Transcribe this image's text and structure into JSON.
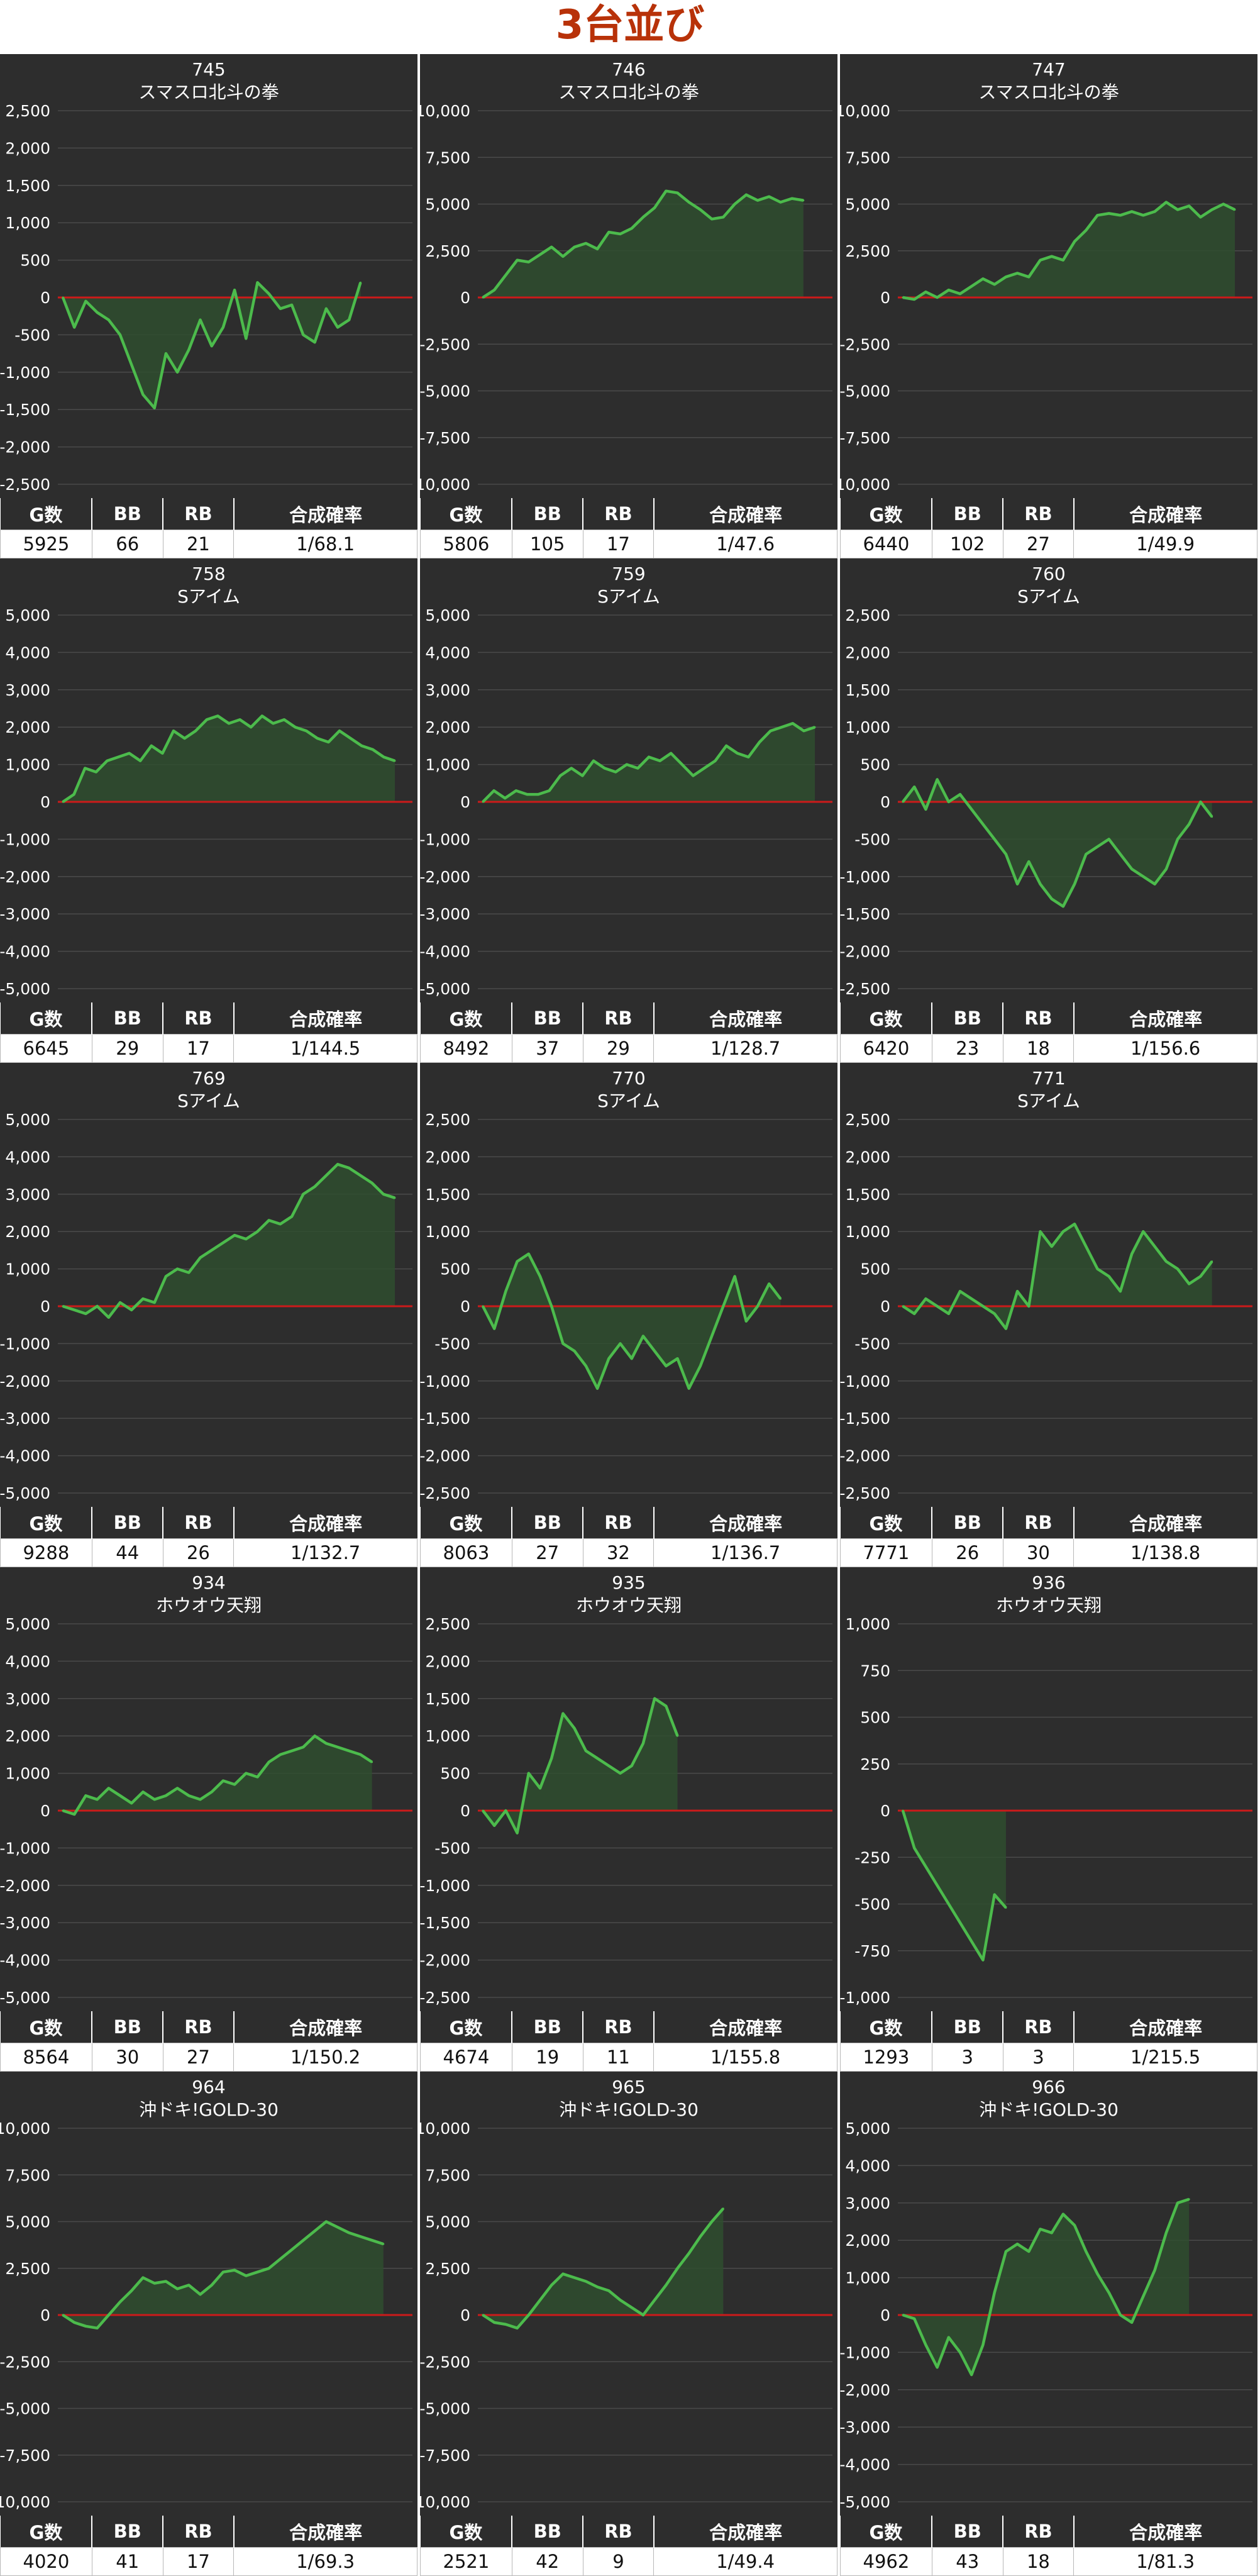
{
  "page": {
    "title": "3台並び"
  },
  "stats_headers": {
    "games": "G数",
    "bb": "BB",
    "rb": "RB",
    "rate": "合成確率"
  },
  "colors": {
    "panel_bg": "#2d2d2d",
    "line": "#4cbb4c",
    "fill": "#2f4d2f",
    "zero_line": "#cc1a1a",
    "grid": "#4a4a4a",
    "title_text": "#b83209"
  },
  "chart_data": [
    {
      "type": "area",
      "machine": "745",
      "name": "スマスロ北斗の拳",
      "ylim": [
        -2500,
        2500
      ],
      "yticks": [
        "2,500",
        "2,000",
        "1,500",
        "1,000",
        "500",
        "0",
        "-500",
        "-1,000",
        "-1,500",
        "-2,000",
        "-2,500"
      ],
      "values": [
        0,
        -400,
        -50,
        -200,
        -300,
        -500,
        -900,
        -1300,
        -1480,
        -750,
        -1000,
        -700,
        -300,
        -650,
        -400,
        100,
        -550,
        200,
        50,
        -150,
        -100,
        -500,
        -600,
        -150,
        -400,
        -300,
        200
      ],
      "stats": {
        "games": "5925",
        "bb": "66",
        "rb": "21",
        "rate": "1/68.1"
      }
    },
    {
      "type": "area",
      "machine": "746",
      "name": "スマスロ北斗の拳",
      "ylim": [
        -10000,
        10000
      ],
      "yticks": [
        "10,000",
        "7,500",
        "5,000",
        "2,500",
        "0",
        "-2,500",
        "-5,000",
        "-7,500",
        "-10,000"
      ],
      "values": [
        0,
        400,
        1200,
        2000,
        1900,
        2300,
        2700,
        2200,
        2700,
        2900,
        2600,
        3500,
        3400,
        3700,
        4300,
        4800,
        5700,
        5600,
        5100,
        4700,
        4200,
        4300,
        5000,
        5500,
        5200,
        5400,
        5100,
        5300,
        5200
      ],
      "stats": {
        "games": "5806",
        "bb": "105",
        "rb": "17",
        "rate": "1/47.6"
      }
    },
    {
      "type": "area",
      "machine": "747",
      "name": "スマスロ北斗の拳",
      "ylim": [
        -10000,
        10000
      ],
      "yticks": [
        "10,000",
        "7,500",
        "5,000",
        "2,500",
        "0",
        "-2,500",
        "-5,000",
        "-7,500",
        "-10,000"
      ],
      "values": [
        0,
        -100,
        300,
        0,
        400,
        200,
        600,
        1000,
        700,
        1100,
        1300,
        1100,
        2000,
        2200,
        2000,
        3000,
        3600,
        4400,
        4500,
        4400,
        4600,
        4400,
        4600,
        5100,
        4700,
        4900,
        4300,
        4700,
        5000,
        4700
      ],
      "stats": {
        "games": "6440",
        "bb": "102",
        "rb": "27",
        "rate": "1/49.9"
      }
    },
    {
      "type": "area",
      "machine": "758",
      "name": "Sアイム",
      "ylim": [
        -5000,
        5000
      ],
      "yticks": [
        "5,000",
        "4,000",
        "3,000",
        "2,000",
        "1,000",
        "0",
        "-1,000",
        "-2,000",
        "-3,000",
        "-4,000",
        "-5,000"
      ],
      "values": [
        0,
        200,
        900,
        800,
        1100,
        1200,
        1300,
        1100,
        1500,
        1300,
        1900,
        1700,
        1900,
        2200,
        2300,
        2100,
        2200,
        2000,
        2300,
        2100,
        2200,
        2000,
        1900,
        1700,
        1600,
        1900,
        1700,
        1500,
        1400,
        1200,
        1100
      ],
      "stats": {
        "games": "6645",
        "bb": "29",
        "rb": "17",
        "rate": "1/144.5"
      }
    },
    {
      "type": "area",
      "machine": "759",
      "name": "Sアイム",
      "ylim": [
        -5000,
        5000
      ],
      "yticks": [
        "5,000",
        "4,000",
        "3,000",
        "2,000",
        "1,000",
        "0",
        "-1,000",
        "-2,000",
        "-3,000",
        "-4,000",
        "-5,000"
      ],
      "values": [
        0,
        300,
        100,
        300,
        200,
        200,
        300,
        700,
        900,
        700,
        1100,
        900,
        800,
        1000,
        900,
        1200,
        1100,
        1300,
        1000,
        700,
        900,
        1100,
        1500,
        1300,
        1200,
        1600,
        1900,
        2000,
        2100,
        1900,
        2000
      ],
      "stats": {
        "games": "8492",
        "bb": "37",
        "rb": "29",
        "rate": "1/128.7"
      }
    },
    {
      "type": "area",
      "machine": "760",
      "name": "Sアイム",
      "ylim": [
        -2500,
        2500
      ],
      "yticks": [
        "2,500",
        "2,000",
        "1,500",
        "1,000",
        "500",
        "0",
        "-500",
        "-1,000",
        "-1,500",
        "-2,000",
        "-2,500"
      ],
      "values": [
        0,
        200,
        -100,
        300,
        0,
        100,
        -100,
        -300,
        -500,
        -700,
        -1100,
        -800,
        -1100,
        -1300,
        -1400,
        -1100,
        -700,
        -600,
        -500,
        -700,
        -900,
        -1000,
        -1100,
        -900,
        -500,
        -300,
        0,
        -200
      ],
      "stats": {
        "games": "6420",
        "bb": "23",
        "rb": "18",
        "rate": "1/156.6"
      }
    },
    {
      "type": "area",
      "machine": "769",
      "name": "Sアイム",
      "ylim": [
        -5000,
        5000
      ],
      "yticks": [
        "5,000",
        "4,000",
        "3,000",
        "2,000",
        "1,000",
        "0",
        "-1,000",
        "-2,000",
        "-3,000",
        "-4,000",
        "-5,000"
      ],
      "values": [
        0,
        -100,
        -200,
        0,
        -300,
        100,
        -100,
        200,
        100,
        800,
        1000,
        900,
        1300,
        1500,
        1700,
        1900,
        1800,
        2000,
        2300,
        2200,
        2400,
        3000,
        3200,
        3500,
        3800,
        3700,
        3500,
        3300,
        3000,
        2900
      ],
      "stats": {
        "games": "9288",
        "bb": "44",
        "rb": "26",
        "rate": "1/132.7"
      }
    },
    {
      "type": "area",
      "machine": "770",
      "name": "Sアイム",
      "ylim": [
        -2500,
        2500
      ],
      "yticks": [
        "2,500",
        "2,000",
        "1,500",
        "1,000",
        "500",
        "0",
        "-500",
        "-1,000",
        "-1,500",
        "-2,000",
        "-2,500"
      ],
      "values": [
        0,
        -300,
        200,
        600,
        700,
        400,
        0,
        -500,
        -600,
        -800,
        -1100,
        -700,
        -500,
        -700,
        -400,
        -600,
        -800,
        -700,
        -1100,
        -800,
        -400,
        0,
        400,
        -200,
        0,
        300,
        100
      ],
      "stats": {
        "games": "8063",
        "bb": "27",
        "rb": "32",
        "rate": "1/136.7"
      }
    },
    {
      "type": "area",
      "machine": "771",
      "name": "Sアイム",
      "ylim": [
        -2500,
        2500
      ],
      "yticks": [
        "2,500",
        "2,000",
        "1,500",
        "1,000",
        "500",
        "0",
        "-500",
        "-1,000",
        "-1,500",
        "-2,000",
        "-2,500"
      ],
      "values": [
        0,
        -100,
        100,
        0,
        -100,
        200,
        100,
        0,
        -100,
        -300,
        200,
        0,
        1000,
        800,
        1000,
        1100,
        800,
        500,
        400,
        200,
        700,
        1000,
        800,
        600,
        500,
        300,
        400,
        600
      ],
      "stats": {
        "games": "7771",
        "bb": "26",
        "rb": "30",
        "rate": "1/138.8"
      }
    },
    {
      "type": "area",
      "machine": "934",
      "name": "ホウオウ天翔",
      "ylim": [
        -5000,
        5000
      ],
      "yticks": [
        "5,000",
        "4,000",
        "3,000",
        "2,000",
        "1,000",
        "0",
        "-1,000",
        "-2,000",
        "-3,000",
        "-4,000",
        "-5,000"
      ],
      "values": [
        0,
        -100,
        400,
        300,
        600,
        400,
        200,
        500,
        300,
        400,
        600,
        400,
        300,
        500,
        800,
        700,
        1000,
        900,
        1300,
        1500,
        1600,
        1700,
        2000,
        1800,
        1700,
        1600,
        1500,
        1300
      ],
      "stats": {
        "games": "8564",
        "bb": "30",
        "rb": "27",
        "rate": "1/150.2"
      }
    },
    {
      "type": "area",
      "machine": "935",
      "name": "ホウオウ天翔",
      "ylim": [
        -2500,
        2500
      ],
      "yticks": [
        "2,500",
        "2,000",
        "1,500",
        "1,000",
        "500",
        "0",
        "-500",
        "-1,000",
        "-1,500",
        "-2,000",
        "-2,500"
      ],
      "values": [
        0,
        -200,
        0,
        -300,
        500,
        300,
        700,
        1300,
        1100,
        800,
        700,
        600,
        500,
        600,
        900,
        1500,
        1400,
        1000
      ],
      "stats": {
        "games": "4674",
        "bb": "19",
        "rb": "11",
        "rate": "1/155.8"
      }
    },
    {
      "type": "area",
      "machine": "936",
      "name": "ホウオウ天翔",
      "ylim": [
        -1000,
        1000
      ],
      "yticks": [
        "1,000",
        "750",
        "500",
        "250",
        "0",
        "-250",
        "-500",
        "-750",
        "-1,000"
      ],
      "values": [
        0,
        -200,
        -300,
        -400,
        -500,
        -600,
        -700,
        -800,
        -450,
        -520
      ],
      "stats": {
        "games": "1293",
        "bb": "3",
        "rb": "3",
        "rate": "1/215.5"
      }
    },
    {
      "type": "area",
      "machine": "964",
      "name": "沖ドキ!GOLD-30",
      "ylim": [
        -10000,
        10000
      ],
      "yticks": [
        "10,000",
        "7,500",
        "5,000",
        "2,500",
        "0",
        "-2,500",
        "-5,000",
        "-7,500",
        "-10,000"
      ],
      "values": [
        0,
        -400,
        -600,
        -700,
        0,
        700,
        1300,
        2000,
        1700,
        1800,
        1400,
        1600,
        1100,
        1600,
        2300,
        2400,
        2100,
        2300,
        2500,
        3000,
        3500,
        4000,
        4500,
        5000,
        4700,
        4400,
        4200,
        4000,
        3800
      ],
      "stats": {
        "games": "4020",
        "bb": "41",
        "rb": "17",
        "rate": "1/69.3"
      }
    },
    {
      "type": "area",
      "machine": "965",
      "name": "沖ドキ!GOLD-30",
      "ylim": [
        -10000,
        10000
      ],
      "yticks": [
        "10,000",
        "7,500",
        "5,000",
        "2,500",
        "0",
        "-2,500",
        "-5,000",
        "-7,500",
        "-10,000"
      ],
      "values": [
        0,
        -400,
        -500,
        -700,
        0,
        800,
        1600,
        2200,
        2000,
        1800,
        1500,
        1300,
        800,
        400,
        0,
        800,
        1600,
        2500,
        3300,
        4200,
        5000,
        5700
      ],
      "stats": {
        "games": "2521",
        "bb": "42",
        "rb": "9",
        "rate": "1/49.4"
      }
    },
    {
      "type": "area",
      "machine": "966",
      "name": "沖ドキ!GOLD-30",
      "ylim": [
        -5000,
        5000
      ],
      "yticks": [
        "5,000",
        "4,000",
        "3,000",
        "2,000",
        "1,000",
        "0",
        "-1,000",
        "-2,000",
        "-3,000",
        "-4,000",
        "-5,000"
      ],
      "values": [
        0,
        -100,
        -800,
        -1400,
        -600,
        -1000,
        -1600,
        -800,
        600,
        1700,
        1900,
        1700,
        2300,
        2200,
        2700,
        2400,
        1700,
        1100,
        600,
        0,
        -200,
        500,
        1200,
        2200,
        3000,
        3100
      ],
      "stats": {
        "games": "4962",
        "bb": "43",
        "rb": "18",
        "rate": "1/81.3"
      }
    }
  ]
}
